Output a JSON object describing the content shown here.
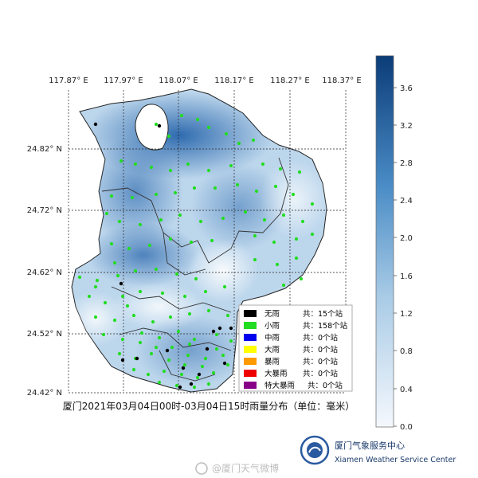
{
  "map": {
    "longitude_labels": [
      "117.87° E",
      "117.97° E",
      "118.07° E",
      "118.17° E",
      "118.27° E",
      "118.37° E"
    ],
    "latitude_labels": [
      "24.82° N",
      "24.72° N",
      "24.62° N",
      "24.52° N",
      "24.42° N"
    ],
    "caption": "厦门2021年03月04日00时-03月04日15时雨量分布（单位：毫米）"
  },
  "colorbar": {
    "ticks": [
      "3.6",
      "3.2",
      "2.8",
      "2.4",
      "2.0",
      "1.6",
      "1.2",
      "0.8",
      "0.4",
      "0.0"
    ],
    "color_low": "#f4f8fd",
    "color_high": "#0b3c78"
  },
  "legend": {
    "items": [
      {
        "name": "无雨",
        "count": "共：15个站",
        "color": "#000000"
      },
      {
        "name": "小雨",
        "count": "共：158个站",
        "color": "#22dd22"
      },
      {
        "name": "中雨",
        "count": "共：0个站",
        "color": "#0000ee"
      },
      {
        "name": "大雨",
        "count": "共：0个站",
        "color": "#ffff00"
      },
      {
        "name": "暴雨",
        "count": "共：0个站",
        "color": "#ff9900"
      },
      {
        "name": "大暴雨",
        "count": "共：0个站",
        "color": "#ee0000"
      },
      {
        "name": "特大暴雨",
        "count": "共：0个站",
        "color": "#880088"
      }
    ]
  },
  "branding": {
    "org_cn": "厦门气象服务中心",
    "org_en": "Xiamen Weather Service Center",
    "watermark": "@厦门天气微博"
  }
}
